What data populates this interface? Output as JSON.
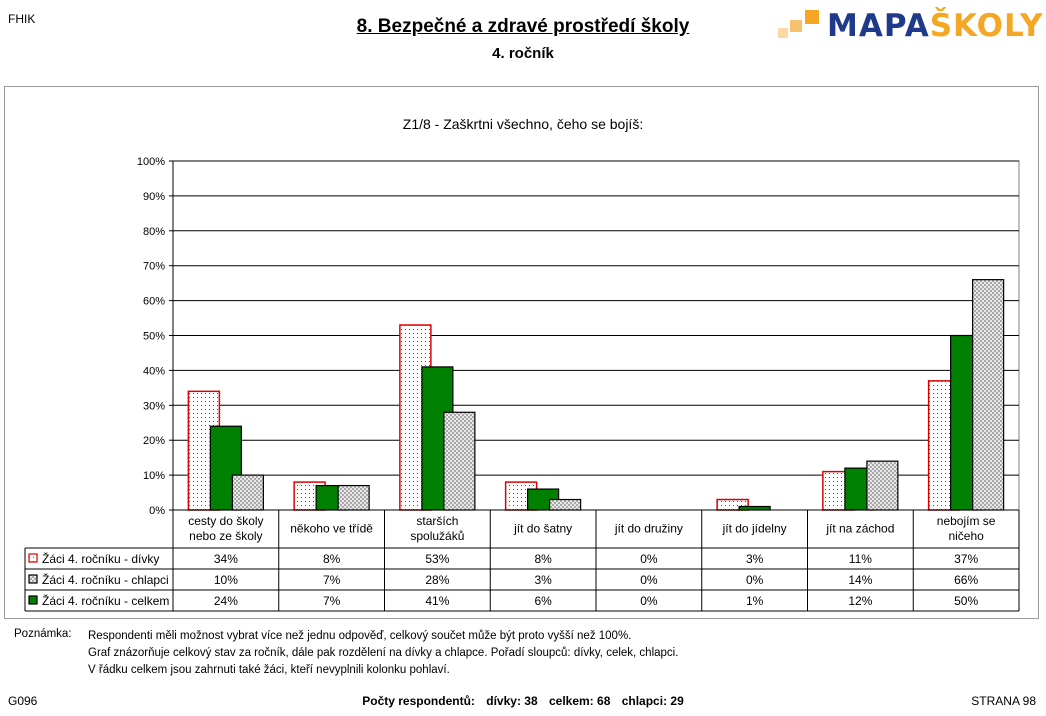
{
  "header": {
    "school_code": "FHIK",
    "title": "8. Bezpečné a zdravé prostředí školy",
    "subtitle": "4. ročník",
    "logo_part1": "MAPA",
    "logo_part2": "ŠKOLY"
  },
  "chart_data": {
    "type": "bar",
    "title": "Z1/8 - Zaškrtni všechno, čeho se bojíš:",
    "categories": [
      "cesty do školy nebo ze školy",
      "někoho ve třídě",
      "starších spolužáků",
      "jít do šatny",
      "jít do družiny",
      "jít do jídelny",
      "jít na záchod",
      "nebojím se ničeho"
    ],
    "series": [
      {
        "name": "Žáci 4. ročníku - dívky",
        "values": [
          34,
          8,
          53,
          8,
          0,
          3,
          11,
          37
        ],
        "color": "#ffffff",
        "stroke": "#e00000",
        "pattern": "dots"
      },
      {
        "name": "Žáci 4. ročníku - celkem",
        "values": [
          24,
          7,
          41,
          6,
          0,
          1,
          12,
          50
        ],
        "color": "#008000",
        "stroke": "#000000",
        "pattern": "solid"
      },
      {
        "name": "Žáci 4. ročníku - chlapci",
        "values": [
          10,
          7,
          28,
          3,
          0,
          0,
          14,
          66
        ],
        "color": "#d9d9d9",
        "stroke": "#000000",
        "pattern": "checker"
      }
    ],
    "yticks": [
      "0%",
      "10%",
      "20%",
      "30%",
      "40%",
      "50%",
      "60%",
      "70%",
      "80%",
      "90%",
      "100%"
    ],
    "ylim": [
      0,
      100
    ],
    "table_rows": [
      {
        "name": "Žáci 4. ročníku - dívky",
        "pattern": "dots",
        "cells": [
          "34%",
          "8%",
          "53%",
          "8%",
          "0%",
          "3%",
          "11%",
          "37%"
        ]
      },
      {
        "name": "Žáci 4. ročníku - chlapci",
        "pattern": "checker",
        "cells": [
          "10%",
          "7%",
          "28%",
          "3%",
          "0%",
          "0%",
          "14%",
          "66%"
        ]
      },
      {
        "name": "Žáci 4. ročníku - celkem",
        "pattern": "solid",
        "cells": [
          "24%",
          "7%",
          "41%",
          "6%",
          "0%",
          "1%",
          "12%",
          "50%"
        ]
      }
    ]
  },
  "notes": {
    "label": "Poznámka:",
    "line1": "Respondenti měli možnost vybrat více než jednu odpověď, celkový součet může být proto vyšší než 100%.",
    "line2": "Graf znázorňuje celkový stav za ročník, dále pak rozdělení na dívky a chlapce. Pořadí sloupců: dívky, celek, chlapci.",
    "line3": "V řádku celkem jsou zahrnuti také žáci, kteří nevyplnili kolonku pohlaví."
  },
  "footer": {
    "code": "G096",
    "respondents_label": "Počty respondentů:",
    "girls": "dívky: 38",
    "total": "celkem: 68",
    "boys": "chlapci: 29",
    "page": "STRANA 98"
  }
}
